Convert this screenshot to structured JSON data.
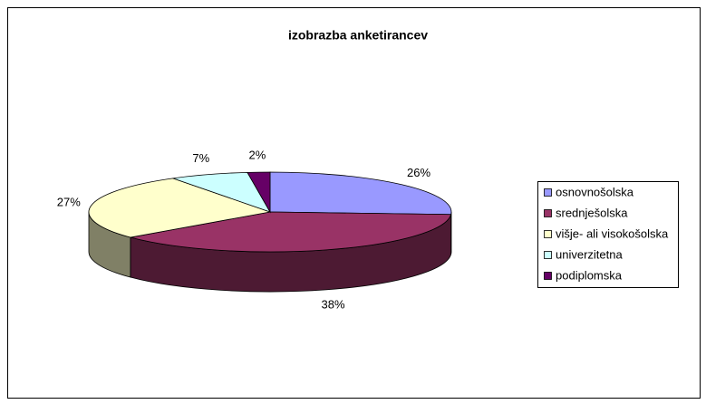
{
  "chart_data": {
    "type": "pie3d",
    "title": "izobrazba anketirancev",
    "categories": [
      "osnovnošolska",
      "srednješolska",
      "višje- ali visokošolska",
      "univerzitetna",
      "podiplomska"
    ],
    "values": [
      26,
      38,
      27,
      7,
      2
    ],
    "value_labels": [
      "26%",
      "38%",
      "27%",
      "7%",
      "2%"
    ],
    "colors": [
      "#9999ff",
      "#993366",
      "#ffffcc",
      "#ccffff",
      "#660066"
    ],
    "legend": "right"
  }
}
